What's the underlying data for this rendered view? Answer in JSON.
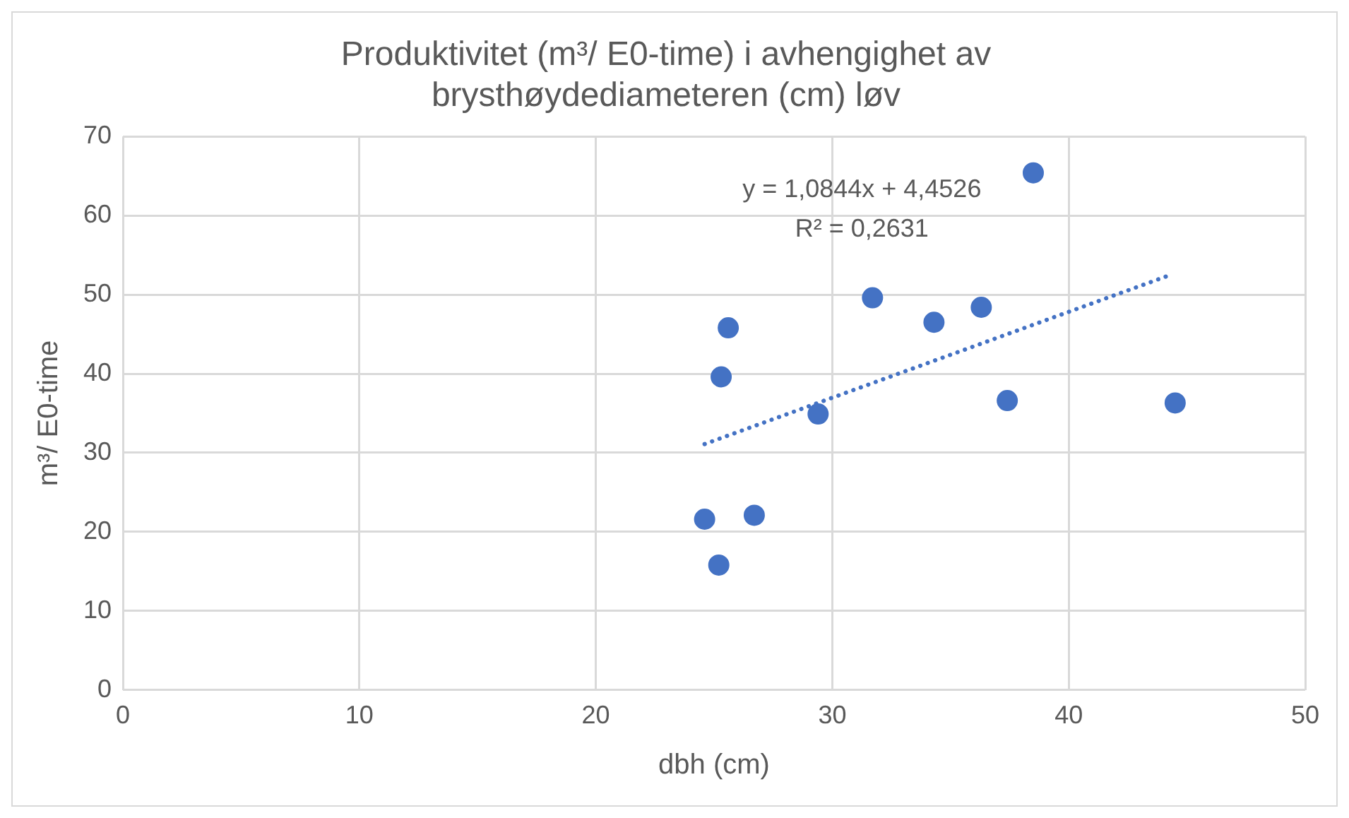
{
  "chart_data": {
    "type": "scatter",
    "title": "Produktivitet (m³/ E0-time) i avhengighet av brysthøydediameteren (cm) løv",
    "xlabel": "dbh (cm)",
    "ylabel": "m³/ E0-time",
    "series": [
      {
        "type": "scatter",
        "color": "#4472c4",
        "marker": "circle",
        "x": [
          38.5,
          25.6,
          25.3,
          29.4,
          31.7,
          34.3,
          36.3,
          37.4,
          44.5,
          24.6,
          26.7,
          25.2
        ],
        "values": [
          65.4,
          45.8,
          39.6,
          34.9,
          49.6,
          46.5,
          48.4,
          36.6,
          36.3,
          21.6,
          22.1,
          15.8
        ]
      },
      {
        "type": "line",
        "color": "#4472c4",
        "line_style": "dotted",
        "marker": "none",
        "x": [
          24.6,
          44.4
        ],
        "values": [
          31.1,
          52.6
        ]
      }
    ],
    "annotations": [
      "y = 1,0844x + 4,4526",
      "R² = 0,2631"
    ],
    "xlim": [
      0,
      50
    ],
    "xticks": [
      0,
      10,
      20,
      30,
      40,
      50
    ],
    "ylim": [
      0,
      70
    ],
    "yticks": [
      0,
      10,
      20,
      30,
      40,
      50,
      60,
      70
    ],
    "grid": true,
    "legend": false
  }
}
